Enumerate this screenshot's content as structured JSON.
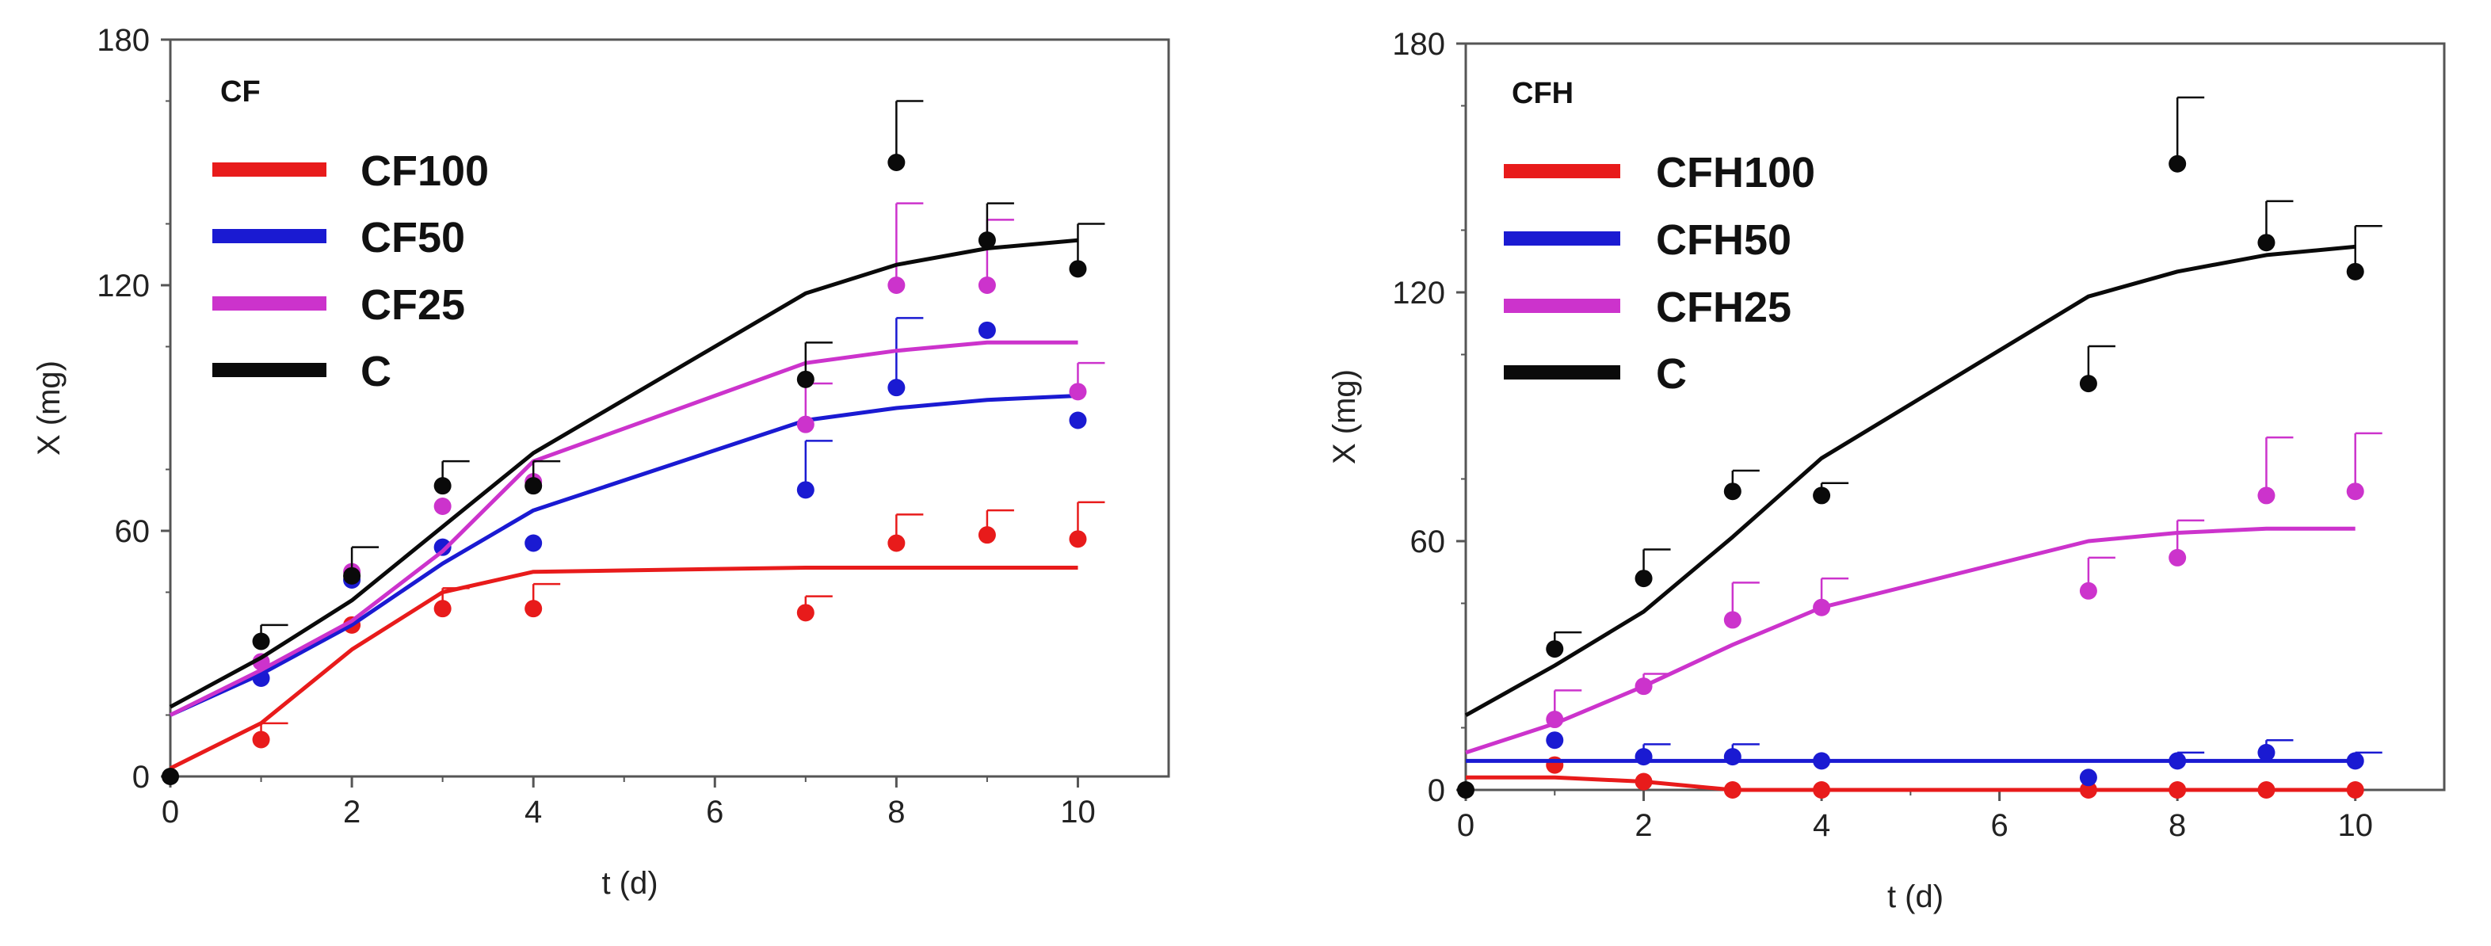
{
  "chart_data": [
    {
      "type": "line",
      "title": "CF",
      "xlabel": "t (d)",
      "ylabel": "X (mg)",
      "xlim": [
        0,
        11
      ],
      "ylim": [
        0,
        180
      ],
      "xticks": [
        0,
        2,
        4,
        6,
        8,
        10
      ],
      "yticks": [
        0,
        60,
        120,
        180
      ],
      "legend": "top-left",
      "series": [
        {
          "name": "CF100",
          "color": "#e81b1b",
          "line": {
            "x": [
              0,
              1,
              2,
              3,
              4,
              7,
              8,
              9,
              10
            ],
            "y": [
              2,
              13,
              31,
              45,
              50,
              51,
              51,
              51,
              51
            ]
          },
          "points": {
            "x": [
              1,
              2,
              3,
              4,
              7,
              8,
              9,
              10
            ],
            "y": [
              9,
              37,
              41,
              41,
              40,
              57,
              59,
              58
            ]
          },
          "errors": [
            4,
            0,
            5,
            6,
            4,
            7,
            6,
            9
          ]
        },
        {
          "name": "CF50",
          "color": "#1a1ad2",
          "line": {
            "x": [
              0,
              1,
              2,
              3,
              4,
              7,
              8,
              9,
              10
            ],
            "y": [
              15,
              25,
              37,
              52,
              65,
              87,
              90,
              92,
              93
            ]
          },
          "points": {
            "x": [
              1,
              2,
              3,
              4,
              7,
              8,
              9,
              10
            ],
            "y": [
              24,
              48,
              56,
              57,
              70,
              95,
              109,
              87
            ]
          },
          "errors": [
            0,
            0,
            0,
            0,
            12,
            17,
            0,
            0
          ]
        },
        {
          "name": "CF25",
          "color": "#cc33cc",
          "line": {
            "x": [
              0,
              1,
              2,
              3,
              4,
              7,
              8,
              9,
              10
            ],
            "y": [
              15,
              26,
              38,
              55,
              77,
              101,
              104,
              106,
              106
            ]
          },
          "points": {
            "x": [
              1,
              2,
              3,
              4,
              7,
              8,
              9,
              10
            ],
            "y": [
              28,
              50,
              66,
              72,
              86,
              120,
              120,
              94
            ]
          },
          "errors": [
            0,
            0,
            0,
            0,
            10,
            20,
            16,
            7
          ]
        },
        {
          "name": "C",
          "color": "#0a0a0a",
          "line": {
            "x": [
              0,
              1,
              2,
              3,
              4,
              7,
              8,
              9,
              10
            ],
            "y": [
              17,
              29,
              43,
              61,
              79,
              118,
              125,
              129,
              131
            ]
          },
          "points": {
            "x": [
              0,
              1,
              2,
              3,
              4,
              7,
              8,
              9,
              10
            ],
            "y": [
              0,
              33,
              49,
              71,
              71,
              97,
              150,
              131,
              124
            ]
          },
          "errors": [
            0,
            4,
            7,
            6,
            6,
            9,
            15,
            9,
            11
          ]
        }
      ]
    },
    {
      "type": "line",
      "title": "CFH",
      "xlabel": "t (d)",
      "ylabel": "X (mg)",
      "xlim": [
        0,
        11
      ],
      "ylim": [
        0,
        180
      ],
      "xticks": [
        0,
        2,
        4,
        6,
        8,
        10
      ],
      "yticks": [
        0,
        60,
        120,
        180
      ],
      "legend": "top-left",
      "series": [
        {
          "name": "CFH100",
          "color": "#e81b1b",
          "line": {
            "x": [
              0,
              1,
              2,
              3,
              4,
              7,
              8,
              9,
              10
            ],
            "y": [
              3,
              3,
              2,
              0,
              0,
              0,
              0,
              0,
              0
            ]
          },
          "points": {
            "x": [
              1,
              2,
              3,
              4,
              7,
              8,
              9,
              10
            ],
            "y": [
              6,
              2,
              0,
              0,
              0,
              0,
              0,
              0
            ]
          },
          "errors": [
            0,
            0,
            0,
            0,
            0,
            0,
            0,
            0
          ]
        },
        {
          "name": "CFH50",
          "color": "#1a1ad2",
          "line": {
            "x": [
              0,
              1,
              2,
              3,
              4,
              7,
              8,
              9,
              10
            ],
            "y": [
              7,
              7,
              7,
              7,
              7,
              7,
              7,
              7,
              7
            ]
          },
          "points": {
            "x": [
              1,
              2,
              3,
              4,
              7,
              8,
              9,
              10
            ],
            "y": [
              12,
              8,
              8,
              7,
              3,
              7,
              9,
              7
            ]
          },
          "errors": [
            0,
            3,
            3,
            0,
            0,
            2,
            3,
            2
          ]
        },
        {
          "name": "CFH25",
          "color": "#cc33cc",
          "line": {
            "x": [
              0,
              1,
              2,
              3,
              4,
              7,
              8,
              9,
              10
            ],
            "y": [
              9,
              16,
              25,
              35,
              44,
              60,
              62,
              63,
              63
            ]
          },
          "points": {
            "x": [
              1,
              2,
              3,
              4,
              7,
              8,
              9,
              10
            ],
            "y": [
              17,
              25,
              41,
              44,
              48,
              56,
              71,
              72
            ]
          },
          "errors": [
            7,
            3,
            9,
            7,
            8,
            9,
            14,
            14
          ]
        },
        {
          "name": "C",
          "color": "#0a0a0a",
          "line": {
            "x": [
              0,
              1,
              2,
              3,
              4,
              7,
              8,
              9,
              10
            ],
            "y": [
              18,
              30,
              43,
              61,
              80,
              119,
              125,
              129,
              131
            ]
          },
          "points": {
            "x": [
              0,
              1,
              2,
              3,
              4,
              7,
              8,
              9,
              10
            ],
            "y": [
              0,
              34,
              51,
              72,
              71,
              98,
              151,
              132,
              125
            ]
          },
          "errors": [
            0,
            4,
            7,
            5,
            3,
            9,
            16,
            10,
            11
          ]
        }
      ]
    }
  ]
}
